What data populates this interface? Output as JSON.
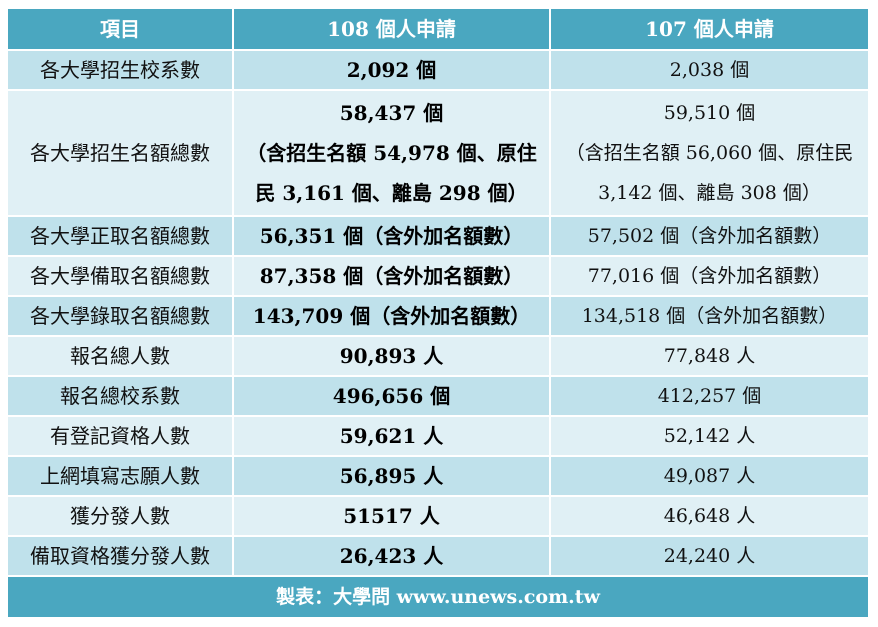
{
  "header": {
    "item": "項目",
    "col108": "108 個人申請",
    "col107": "107 個人申請"
  },
  "rows": [
    {
      "label": "各大學招生校系數",
      "v108": "2,092 個",
      "v107": "2,038 個"
    },
    {
      "label": "各大學招生名額總數",
      "v108_main": "58,437 個",
      "v108_detail": "（含招生名額 54,978 個、原住民 3,161 個、離島 298 個）",
      "v107_main": "59,510 個",
      "v107_detail": "（含招生名額 56,060 個、原住民 3,142 個、離島 308 個）"
    },
    {
      "label": "各大學正取名額總數",
      "v108": "56,351 個（含外加名額數）",
      "v107": "57,502 個（含外加名額數）"
    },
    {
      "label": "各大學備取名額總數",
      "v108": "87,358 個（含外加名額數）",
      "v107": "77,016 個（含外加名額數）"
    },
    {
      "label": "各大學錄取名額總數",
      "v108": "143,709 個（含外加名額數）",
      "v107": "134,518 個（含外加名額數）"
    },
    {
      "label": "報名總人數",
      "v108": "90,893 人",
      "v107": "77,848 人"
    },
    {
      "label": "報名總校系數",
      "v108": "496,656 個",
      "v107": "412,257 個"
    },
    {
      "label": "有登記資格人數",
      "v108": "59,621 人",
      "v107": "52,142 人"
    },
    {
      "label": "上網填寫志願人數",
      "v108": "56,895 人",
      "v107": "49,087 人"
    },
    {
      "label": "獲分發人數",
      "v108": "51517 人",
      "v107": "46,648 人"
    },
    {
      "label": "備取資格獲分發人數",
      "v108": "26,423 人",
      "v107": "24,240 人"
    }
  ],
  "footer": {
    "credit": "製表：大學問 www.unews.com.tw"
  },
  "colors": {
    "header_bg": "#4aa7c0",
    "row_dark": "#bfe1eb",
    "row_light": "#e0f0f5",
    "border": "#ffffff"
  }
}
